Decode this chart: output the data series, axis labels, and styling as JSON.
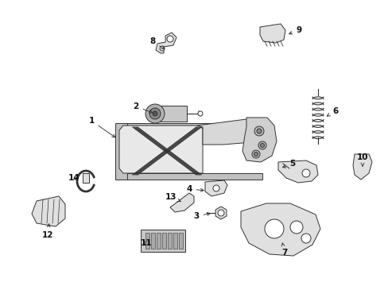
{
  "background_color": "#ffffff",
  "fig_width": 4.89,
  "fig_height": 3.6,
  "dpi": 100,
  "line_color": "#333333",
  "part_fill": "#e0e0e0",
  "part_fill_dark": "#c0c0c0"
}
